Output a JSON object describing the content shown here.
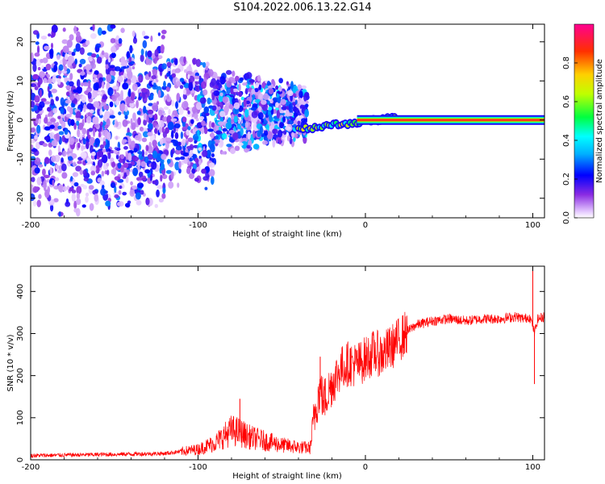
{
  "figure_title": "S104.2022.006.13.22.G14",
  "chart_data": [
    {
      "type": "heatmap",
      "title": "",
      "xlabel": "Height of straight line (km)",
      "ylabel": "Frequency (Hz)",
      "xlim": [
        -200,
        107
      ],
      "ylim": [
        -25,
        24.5
      ],
      "xticks": [
        -200,
        -100,
        0,
        100
      ],
      "yticks": [
        -20,
        -10,
        0,
        10,
        20
      ],
      "colorbar": {
        "label": "Normalized spectral amplitude",
        "range": [
          0.0,
          1.0
        ],
        "ticks": [
          0.0,
          0.2,
          0.4,
          0.6,
          0.8
        ],
        "tick_labels": [
          "0.0",
          "0.2",
          "0.4",
          "0.6",
          "0.8"
        ],
        "colors": [
          "#ffffff",
          "#d9b3ff",
          "#7a00ff",
          "#0000ff",
          "#00ffff",
          "#00ff00",
          "#ffff00",
          "#ff8000",
          "#ff0000",
          "#ff00a0"
        ]
      },
      "features": {
        "scatter_region": {
          "x": [
            -200,
            -40
          ],
          "amplitude": 0.25
        },
        "ridge": {
          "x": [
            -40,
            18
          ],
          "frequency_start": -2.3,
          "frequency_end": 0.6,
          "amplitude": 0.4
        },
        "carrier_line": {
          "x": [
            -5,
            107
          ],
          "frequency": 0.0,
          "amplitude": 0.9
        }
      }
    },
    {
      "type": "line",
      "title": "",
      "xlabel": "Height of straight line (km)",
      "ylabel": "SNR (10 * v/v)",
      "xlim": [
        -200,
        107
      ],
      "ylim": [
        0,
        460
      ],
      "xticks": [
        -200,
        -100,
        0,
        100
      ],
      "yticks": [
        0,
        100,
        200,
        300,
        400
      ],
      "line_color": "#ff0000",
      "envelope": {
        "x": [
          -200,
          -150,
          -120,
          -100,
          -90,
          -85,
          -80,
          -75,
          -70,
          -60,
          -50,
          -40,
          -33,
          -30,
          -27,
          -25,
          -20,
          -15,
          -10,
          -5,
          0,
          5,
          10,
          15,
          20,
          25,
          30,
          40,
          50,
          60,
          70,
          80,
          90,
          95,
          98,
          100,
          101,
          103,
          107
        ],
        "y": [
          10,
          13,
          15,
          25,
          40,
          55,
          70,
          65,
          55,
          45,
          35,
          30,
          28,
          120,
          170,
          140,
          180,
          215,
          230,
          225,
          240,
          255,
          250,
          265,
          285,
          305,
          320,
          330,
          335,
          330,
          335,
          335,
          340,
          335,
          340,
          320,
          300,
          335,
          340
        ]
      },
      "spikes": [
        {
          "x": 100,
          "y": 460
        },
        {
          "x": 101,
          "y": 180
        },
        {
          "x": -75,
          "y": 145
        },
        {
          "x": -27,
          "y": 245
        }
      ]
    }
  ]
}
